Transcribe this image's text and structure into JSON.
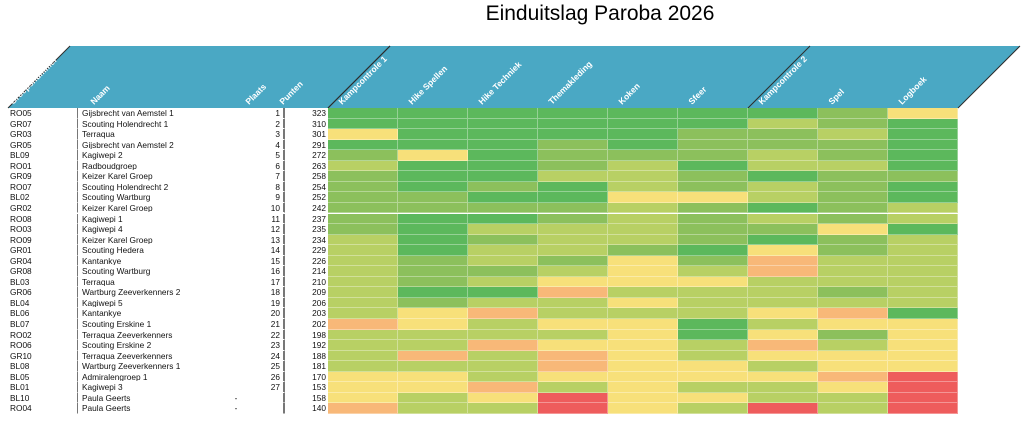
{
  "title": "Einduitslag Paroba 2026",
  "headers": {
    "group": "Groepsnummer",
    "name": "Naam",
    "place": "Plaats",
    "points": "Punten",
    "categories": [
      "Kampcontrole 1",
      "Hike Spellen",
      "Hike Techniek",
      "Themakleding",
      "Koken",
      "Sfeer",
      "Kampcontrole 2",
      "Spel",
      "Logboek"
    ]
  },
  "colors": {
    "header_fill": "#4aa8c4",
    "g": "#5cb85c",
    "lg": "#8cc05c",
    "yg": "#b8d064",
    "y": "#f7e07a",
    "o": "#f8b878",
    "r": "#ee5c5c"
  },
  "rows": [
    {
      "group": "RO05",
      "name": "Gijsbrecht van Aemstel 1",
      "place": "1",
      "points": "323",
      "scores": [
        "g",
        "g",
        "g",
        "g",
        "g",
        "g",
        "g",
        "lg",
        "y"
      ]
    },
    {
      "group": "GR07",
      "name": "Scouting Holendrecht 1",
      "place": "2",
      "points": "310",
      "scores": [
        "g",
        "g",
        "g",
        "g",
        "g",
        "g",
        "yg",
        "lg",
        "g"
      ]
    },
    {
      "group": "GR03",
      "name": "Terraqua",
      "place": "3",
      "points": "301",
      "scores": [
        "y",
        "g",
        "g",
        "g",
        "g",
        "lg",
        "lg",
        "yg",
        "g"
      ]
    },
    {
      "group": "GR05",
      "name": "Gijsbrecht van Aemstel 2",
      "place": "4",
      "points": "291",
      "scores": [
        "g",
        "g",
        "g",
        "lg",
        "g",
        "lg",
        "lg",
        "lg",
        "g"
      ]
    },
    {
      "group": "BL09",
      "name": "Kagiwepi 2",
      "place": "5",
      "points": "272",
      "scores": [
        "lg",
        "y",
        "g",
        "lg",
        "lg",
        "lg",
        "yg",
        "lg",
        "g"
      ]
    },
    {
      "group": "RO01",
      "name": "Radboudgroep",
      "place": "6",
      "points": "263",
      "scores": [
        "yg",
        "g",
        "g",
        "lg",
        "yg",
        "g",
        "yg",
        "yg",
        "g"
      ]
    },
    {
      "group": "GR09",
      "name": "Keizer Karel Groep",
      "place": "7",
      "points": "258",
      "scores": [
        "lg",
        "g",
        "g",
        "yg",
        "yg",
        "lg",
        "g",
        "lg",
        "lg"
      ]
    },
    {
      "group": "RO07",
      "name": "Scouting Holendrecht 2",
      "place": "8",
      "points": "254",
      "scores": [
        "lg",
        "g",
        "lg",
        "g",
        "yg",
        "lg",
        "yg",
        "lg",
        "g"
      ]
    },
    {
      "group": "BL02",
      "name": "Scouting Wartburg",
      "place": "9",
      "points": "252",
      "scores": [
        "lg",
        "lg",
        "g",
        "g",
        "y",
        "y",
        "yg",
        "lg",
        "g"
      ]
    },
    {
      "group": "GR02",
      "name": "Keizer Karel Groep",
      "place": "10",
      "points": "242",
      "scores": [
        "lg",
        "lg",
        "lg",
        "lg",
        "yg",
        "lg",
        "g",
        "lg",
        "yg"
      ]
    },
    {
      "group": "RO08",
      "name": "Kagiwepi 1",
      "place": "11",
      "points": "237",
      "scores": [
        "lg",
        "g",
        "g",
        "lg",
        "yg",
        "lg",
        "yg",
        "lg",
        "yg"
      ]
    },
    {
      "group": "RO03",
      "name": "Kagiwepi 4",
      "place": "12",
      "points": "235",
      "scores": [
        "lg",
        "g",
        "yg",
        "yg",
        "yg",
        "lg",
        "lg",
        "y",
        "g"
      ]
    },
    {
      "group": "RO09",
      "name": "Keizer Karel Groep",
      "place": "13",
      "points": "234",
      "scores": [
        "yg",
        "g",
        "lg",
        "yg",
        "yg",
        "lg",
        "g",
        "lg",
        "yg"
      ]
    },
    {
      "group": "GR01",
      "name": "Scouting Hedera",
      "place": "14",
      "points": "229",
      "scores": [
        "yg",
        "g",
        "yg",
        "yg",
        "lg",
        "g",
        "y",
        "lg",
        "yg"
      ]
    },
    {
      "group": "GR04",
      "name": "Kantankye",
      "place": "15",
      "points": "226",
      "scores": [
        "yg",
        "lg",
        "yg",
        "lg",
        "y",
        "lg",
        "o",
        "yg",
        "yg"
      ]
    },
    {
      "group": "GR08",
      "name": "Scouting Wartburg",
      "place": "16",
      "points": "214",
      "scores": [
        "yg",
        "lg",
        "lg",
        "yg",
        "y",
        "yg",
        "o",
        "yg",
        "yg"
      ]
    },
    {
      "group": "BL03",
      "name": "Terraqua",
      "place": "17",
      "points": "210",
      "scores": [
        "yg",
        "lg",
        "yg",
        "y",
        "y",
        "y",
        "yg",
        "yg",
        "yg"
      ]
    },
    {
      "group": "GR06",
      "name": "Wartburg Zeeverkenners 2",
      "place": "18",
      "points": "209",
      "scores": [
        "yg",
        "g",
        "g",
        "o",
        "yg",
        "yg",
        "yg",
        "lg",
        "yg"
      ]
    },
    {
      "group": "BL04",
      "name": "Kagiwepi 5",
      "place": "19",
      "points": "206",
      "scores": [
        "yg",
        "lg",
        "yg",
        "yg",
        "y",
        "yg",
        "yg",
        "yg",
        "yg"
      ]
    },
    {
      "group": "BL06",
      "name": "Kantankye",
      "place": "20",
      "points": "203",
      "scores": [
        "yg",
        "y",
        "o",
        "yg",
        "yg",
        "yg",
        "y",
        "o",
        "g"
      ]
    },
    {
      "group": "BL07",
      "name": "Scouting Erskine 1",
      "place": "21",
      "points": "202",
      "scores": [
        "o",
        "y",
        "yg",
        "y",
        "y",
        "g",
        "yg",
        "y",
        "y"
      ]
    },
    {
      "group": "RO02",
      "name": "Terraqua Zeeverkenners",
      "place": "22",
      "points": "198",
      "scores": [
        "yg",
        "yg",
        "yg",
        "yg",
        "y",
        "g",
        "y",
        "lg",
        "y"
      ]
    },
    {
      "group": "RO06",
      "name": "Scouting Erskine 2",
      "place": "23",
      "points": "192",
      "scores": [
        "yg",
        "yg",
        "o",
        "y",
        "y",
        "yg",
        "o",
        "yg",
        "y"
      ]
    },
    {
      "group": "GR10",
      "name": "Terraqua Zeeverkenners",
      "place": "24",
      "points": "188",
      "scores": [
        "yg",
        "o",
        "yg",
        "o",
        "y",
        "yg",
        "y",
        "y",
        "y"
      ]
    },
    {
      "group": "BL08",
      "name": "Wartburg Zeeverkenners 1",
      "place": "25",
      "points": "181",
      "scores": [
        "yg",
        "yg",
        "yg",
        "o",
        "y",
        "y",
        "yg",
        "y",
        "y"
      ]
    },
    {
      "group": "BL05",
      "name": "Admiralengroep 1",
      "place": "26",
      "points": "170",
      "scores": [
        "y",
        "y",
        "yg",
        "y",
        "y",
        "y",
        "y",
        "o",
        "r"
      ]
    },
    {
      "group": "BL01",
      "name": "Kagiwepi 3",
      "place": "27",
      "points": "153",
      "scores": [
        "y",
        "y",
        "o",
        "yg",
        "y",
        "yg",
        "yg",
        "y",
        "r"
      ]
    },
    {
      "group": "BL10",
      "name": "Paula Geerts",
      "place": "-",
      "points": "158",
      "scores": [
        "y",
        "yg",
        "y",
        "r",
        "y",
        "y",
        "yg",
        "yg",
        "r"
      ]
    },
    {
      "group": "RO04",
      "name": "Paula Geerts",
      "place": "-",
      "points": "140",
      "scores": [
        "o",
        "yg",
        "yg",
        "r",
        "y",
        "yg",
        "r",
        "yg",
        "r"
      ]
    }
  ]
}
